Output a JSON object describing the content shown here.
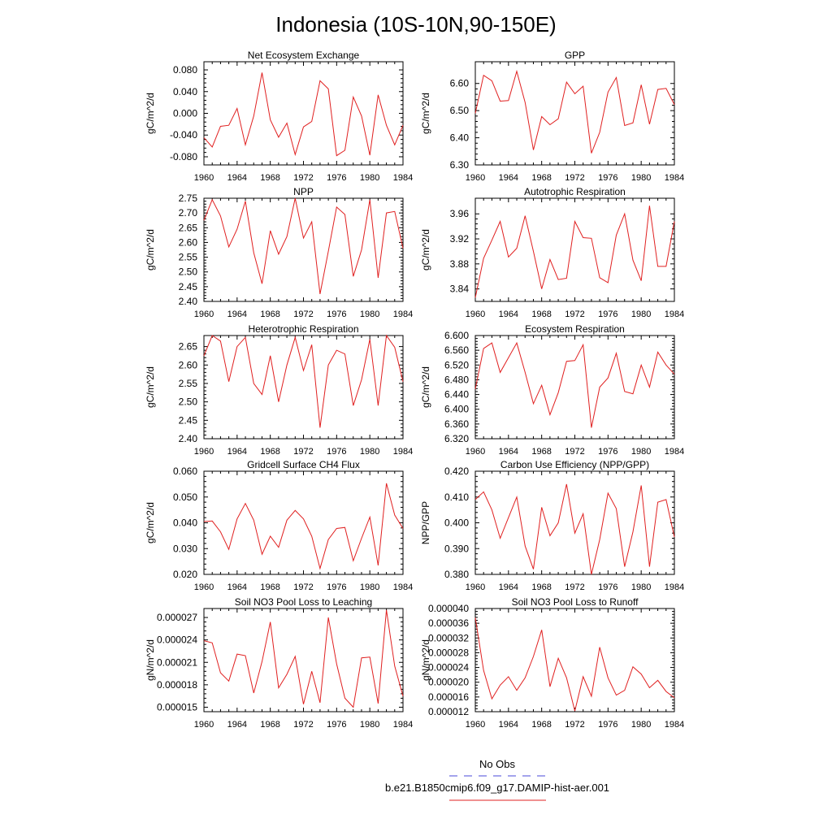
{
  "figure": {
    "title": "Indonesia (10S-10N,90-150E)",
    "legend": {
      "obs_label": "No Obs",
      "obs_color": "#4a4ad8",
      "model_label": "b.e21.B1850cmip6.f09_g17.DAMIP-hist-aer.001",
      "model_color": "#e02020"
    }
  },
  "chart_data": [
    {
      "type": "line",
      "title": "Net Ecosystem Exchange",
      "ylabel": "gC/m^2/d",
      "xlim": [
        1960,
        1984
      ],
      "ylim": [
        -0.095,
        0.095
      ],
      "xticks": [
        "1960",
        "1964",
        "1968",
        "1972",
        "1976",
        "1980",
        "1984"
      ],
      "yticks": [
        "-0.080",
        "-0.040",
        "0.000",
        "0.040",
        "0.080"
      ],
      "ytick_values": [
        -0.08,
        -0.04,
        0.0,
        0.04,
        0.08
      ],
      "series": [
        {
          "color": "#e02020",
          "x": [
            1960,
            1961,
            1962,
            1963,
            1964,
            1965,
            1966,
            1967,
            1968,
            1969,
            1970,
            1971,
            1972,
            1973,
            1974,
            1975,
            1976,
            1977,
            1978,
            1979,
            1980,
            1981,
            1982,
            1983,
            1984
          ],
          "values": [
            -0.045,
            -0.062,
            -0.024,
            -0.022,
            0.009,
            -0.058,
            -0.005,
            0.075,
            -0.012,
            -0.044,
            -0.018,
            -0.076,
            -0.025,
            -0.015,
            0.06,
            0.045,
            -0.078,
            -0.068,
            0.03,
            -0.005,
            -0.077,
            0.034,
            -0.022,
            -0.058,
            -0.022
          ]
        }
      ]
    },
    {
      "type": "line",
      "title": "GPP",
      "ylabel": "gC/m^2/d",
      "xlim": [
        1960,
        1984
      ],
      "ylim": [
        6.3,
        6.68
      ],
      "xticks": [
        "1960",
        "1964",
        "1968",
        "1972",
        "1976",
        "1980",
        "1984"
      ],
      "yticks": [
        "6.30",
        "6.40",
        "6.50",
        "6.60"
      ],
      "ytick_values": [
        6.3,
        6.4,
        6.5,
        6.6
      ],
      "series": [
        {
          "color": "#e02020",
          "x": [
            1960,
            1961,
            1962,
            1963,
            1964,
            1965,
            1966,
            1967,
            1968,
            1969,
            1970,
            1971,
            1972,
            1973,
            1974,
            1975,
            1976,
            1977,
            1978,
            1979,
            1980,
            1981,
            1982,
            1983,
            1984
          ],
          "values": [
            6.49,
            6.63,
            6.61,
            6.535,
            6.537,
            6.645,
            6.53,
            6.355,
            6.478,
            6.448,
            6.47,
            6.605,
            6.562,
            6.59,
            6.343,
            6.42,
            6.568,
            6.622,
            6.445,
            6.455,
            6.595,
            6.45,
            6.578,
            6.582,
            6.522
          ]
        }
      ]
    },
    {
      "type": "line",
      "title": "NPP",
      "ylabel": "gC/m^2/d",
      "xlim": [
        1960,
        1984
      ],
      "ylim": [
        2.4,
        2.75
      ],
      "xticks": [
        "1960",
        "1964",
        "1968",
        "1972",
        "1976",
        "1980",
        "1984"
      ],
      "yticks": [
        "2.40",
        "2.45",
        "2.50",
        "2.55",
        "2.60",
        "2.65",
        "2.70",
        "2.75"
      ],
      "ytick_values": [
        2.4,
        2.45,
        2.5,
        2.55,
        2.6,
        2.65,
        2.7,
        2.75
      ],
      "series": [
        {
          "color": "#e02020",
          "x": [
            1960,
            1961,
            1962,
            1963,
            1964,
            1965,
            1966,
            1967,
            1968,
            1969,
            1970,
            1971,
            1972,
            1973,
            1974,
            1975,
            1976,
            1977,
            1978,
            1979,
            1980,
            1981,
            1982,
            1983,
            1984
          ],
          "values": [
            2.675,
            2.745,
            2.69,
            2.585,
            2.645,
            2.74,
            2.565,
            2.46,
            2.64,
            2.56,
            2.62,
            2.75,
            2.615,
            2.67,
            2.425,
            2.57,
            2.72,
            2.695,
            2.485,
            2.575,
            2.745,
            2.48,
            2.7,
            2.705,
            2.58
          ]
        }
      ]
    },
    {
      "type": "line",
      "title": "Autotrophic Respiration",
      "ylabel": "gC/m^2/d",
      "xlim": [
        1960,
        1984
      ],
      "ylim": [
        3.82,
        3.985
      ],
      "xticks": [
        "1960",
        "1964",
        "1968",
        "1972",
        "1976",
        "1980",
        "1984"
      ],
      "yticks": [
        "3.84",
        "3.88",
        "3.92",
        "3.96"
      ],
      "ytick_values": [
        3.84,
        3.88,
        3.92,
        3.96
      ],
      "series": [
        {
          "color": "#e02020",
          "x": [
            1960,
            1961,
            1962,
            1963,
            1964,
            1965,
            1966,
            1967,
            1968,
            1969,
            1970,
            1971,
            1972,
            1973,
            1974,
            1975,
            1976,
            1977,
            1978,
            1979,
            1980,
            1981,
            1982,
            1983,
            1984
          ],
          "values": [
            3.826,
            3.889,
            3.918,
            3.948,
            3.891,
            3.905,
            3.957,
            3.9,
            3.84,
            3.887,
            3.855,
            3.857,
            3.948,
            3.922,
            3.921,
            3.858,
            3.85,
            3.926,
            3.96,
            3.886,
            3.853,
            3.973,
            3.876,
            3.876,
            3.948
          ]
        }
      ]
    },
    {
      "type": "line",
      "title": "Heterotrophic Respiration",
      "ylabel": "gC/m^2/d",
      "xlim": [
        1960,
        1984
      ],
      "ylim": [
        2.4,
        2.68
      ],
      "xticks": [
        "1960",
        "1964",
        "1968",
        "1972",
        "1976",
        "1980",
        "1984"
      ],
      "yticks": [
        "2.40",
        "2.45",
        "2.50",
        "2.55",
        "2.60",
        "2.65"
      ],
      "ytick_values": [
        2.4,
        2.45,
        2.5,
        2.55,
        2.6,
        2.65
      ],
      "series": [
        {
          "color": "#e02020",
          "x": [
            1960,
            1961,
            1962,
            1963,
            1964,
            1965,
            1966,
            1967,
            1968,
            1969,
            1970,
            1971,
            1972,
            1973,
            1974,
            1975,
            1976,
            1977,
            1978,
            1979,
            1980,
            1981,
            1982,
            1983,
            1984
          ],
          "values": [
            2.625,
            2.68,
            2.665,
            2.555,
            2.65,
            2.675,
            2.55,
            2.52,
            2.625,
            2.5,
            2.6,
            2.675,
            2.585,
            2.655,
            2.43,
            2.6,
            2.64,
            2.63,
            2.49,
            2.56,
            2.67,
            2.49,
            2.68,
            2.648,
            2.555
          ]
        }
      ]
    },
    {
      "type": "line",
      "title": "Ecosystem Respiration",
      "ylabel": "gC/m^2/d",
      "xlim": [
        1960,
        1984
      ],
      "ylim": [
        6.32,
        6.6
      ],
      "xticks": [
        "1960",
        "1964",
        "1968",
        "1972",
        "1976",
        "1980",
        "1984"
      ],
      "yticks": [
        "6.320",
        "6.360",
        "6.400",
        "6.440",
        "6.480",
        "6.520",
        "6.560",
        "6.600"
      ],
      "ytick_values": [
        6.32,
        6.36,
        6.4,
        6.44,
        6.48,
        6.52,
        6.56,
        6.6
      ],
      "series": [
        {
          "color": "#e02020",
          "x": [
            1960,
            1961,
            1962,
            1963,
            1964,
            1965,
            1966,
            1967,
            1968,
            1969,
            1970,
            1971,
            1972,
            1973,
            1974,
            1975,
            1976,
            1977,
            1978,
            1979,
            1980,
            1981,
            1982,
            1983,
            1984
          ],
          "values": [
            6.455,
            6.565,
            6.58,
            6.5,
            6.54,
            6.58,
            6.5,
            6.415,
            6.465,
            6.385,
            6.445,
            6.53,
            6.532,
            6.575,
            6.35,
            6.46,
            6.485,
            6.552,
            6.448,
            6.442,
            6.52,
            6.46,
            6.555,
            6.52,
            6.495
          ]
        }
      ]
    },
    {
      "type": "line",
      "title": "Gridcell Surface CH4 Flux",
      "ylabel": "gC/m^2/d",
      "xlim": [
        1960,
        1984
      ],
      "ylim": [
        0.02,
        0.06
      ],
      "xticks": [
        "1960",
        "1964",
        "1968",
        "1972",
        "1976",
        "1980",
        "1984"
      ],
      "yticks": [
        "0.020",
        "0.030",
        "0.040",
        "0.050",
        "0.060"
      ],
      "ytick_values": [
        0.02,
        0.03,
        0.04,
        0.05,
        0.06
      ],
      "series": [
        {
          "color": "#e02020",
          "x": [
            1960,
            1961,
            1962,
            1963,
            1964,
            1965,
            1966,
            1967,
            1968,
            1969,
            1970,
            1971,
            1972,
            1973,
            1974,
            1975,
            1976,
            1977,
            1978,
            1979,
            1980,
            1981,
            1982,
            1983,
            1984
          ],
          "values": [
            0.0405,
            0.0407,
            0.0365,
            0.0297,
            0.0415,
            0.0475,
            0.041,
            0.0278,
            0.0348,
            0.0305,
            0.041,
            0.0448,
            0.0415,
            0.0348,
            0.0223,
            0.0335,
            0.0378,
            0.0382,
            0.0253,
            0.034,
            0.0422,
            0.0235,
            0.0553,
            0.043,
            0.0378
          ]
        }
      ]
    },
    {
      "type": "line",
      "title": "Carbon Use Efficiency (NPP/GPP)",
      "ylabel": "NPP/GPP",
      "xlim": [
        1960,
        1984
      ],
      "ylim": [
        0.38,
        0.42
      ],
      "xticks": [
        "1960",
        "1964",
        "1968",
        "1972",
        "1976",
        "1980",
        "1984"
      ],
      "yticks": [
        "0.380",
        "0.390",
        "0.400",
        "0.410",
        "0.420"
      ],
      "ytick_values": [
        0.38,
        0.39,
        0.4,
        0.41,
        0.42
      ],
      "series": [
        {
          "color": "#e02020",
          "x": [
            1960,
            1961,
            1962,
            1963,
            1964,
            1965,
            1966,
            1967,
            1968,
            1969,
            1970,
            1971,
            1972,
            1973,
            1974,
            1975,
            1976,
            1977,
            1978,
            1979,
            1980,
            1981,
            1982,
            1983,
            1984
          ],
          "values": [
            0.409,
            0.412,
            0.405,
            0.394,
            0.402,
            0.41,
            0.391,
            0.382,
            0.406,
            0.395,
            0.4,
            0.415,
            0.396,
            0.4035,
            0.38,
            0.3935,
            0.4115,
            0.4055,
            0.383,
            0.3965,
            0.4145,
            0.383,
            0.408,
            0.409,
            0.3945
          ]
        }
      ]
    },
    {
      "type": "line",
      "title": "Soil NO3 Pool Loss to Leaching",
      "ylabel": "gN/m^2/d",
      "xlim": [
        1960,
        1984
      ],
      "ylim": [
        1.44e-05,
        2.82e-05
      ],
      "xticks": [
        "1960",
        "1964",
        "1968",
        "1972",
        "1976",
        "1980",
        "1984"
      ],
      "yticks": [
        "0.000015",
        "0.000018",
        "0.000021",
        "0.000024",
        "0.000027"
      ],
      "ytick_values": [
        1.5e-05,
        1.8e-05,
        2.1e-05,
        2.4e-05,
        2.7e-05
      ],
      "series": [
        {
          "color": "#e02020",
          "x": [
            1960,
            1961,
            1962,
            1963,
            1964,
            1965,
            1966,
            1967,
            1968,
            1969,
            1970,
            1971,
            1972,
            1973,
            1974,
            1975,
            1976,
            1977,
            1978,
            1979,
            1980,
            1981,
            1982,
            1983,
            1984
          ],
          "values": [
            2.39e-05,
            2.36e-05,
            1.96e-05,
            1.85e-05,
            2.21e-05,
            2.19e-05,
            1.69e-05,
            2.11e-05,
            2.64e-05,
            1.76e-05,
            1.94e-05,
            2.18e-05,
            1.54e-05,
            1.98e-05,
            1.56e-05,
            2.7e-05,
            2.08e-05,
            1.62e-05,
            1.5e-05,
            2.16e-05,
            2.17e-05,
            1.55e-05,
            2.8e-05,
            2.05e-05,
            1.65e-05
          ]
        }
      ]
    },
    {
      "type": "line",
      "title": "Soil NO3 Pool Loss to Runoff",
      "ylabel": "gN/m^2/d",
      "xlim": [
        1960,
        1984
      ],
      "ylim": [
        1.2e-05,
        4e-05
      ],
      "xticks": [
        "1960",
        "1964",
        "1968",
        "1972",
        "1976",
        "1980",
        "1984"
      ],
      "yticks": [
        "0.000012",
        "0.000016",
        "0.000020",
        "0.000024",
        "0.000028",
        "0.000032",
        "0.000036",
        "0.000040"
      ],
      "ytick_values": [
        1.2e-05,
        1.6e-05,
        2e-05,
        2.4e-05,
        2.8e-05,
        3.2e-05,
        3.6e-05,
        4e-05
      ],
      "series": [
        {
          "color": "#e02020",
          "x": [
            1960,
            1961,
            1962,
            1963,
            1964,
            1965,
            1966,
            1967,
            1968,
            1969,
            1970,
            1971,
            1972,
            1973,
            1974,
            1975,
            1976,
            1977,
            1978,
            1979,
            1980,
            1981,
            1982,
            1983,
            1984
          ],
          "values": [
            3.75e-05,
            2.32e-05,
            1.55e-05,
            1.92e-05,
            2.15e-05,
            1.78e-05,
            2.12e-05,
            2.7e-05,
            3.42e-05,
            1.88e-05,
            2.65e-05,
            2.12e-05,
            1.22e-05,
            2.15e-05,
            1.62e-05,
            2.95e-05,
            2.12e-05,
            1.65e-05,
            1.78e-05,
            2.42e-05,
            2.22e-05,
            1.85e-05,
            2.05e-05,
            1.75e-05,
            1.58e-05
          ]
        }
      ]
    }
  ]
}
